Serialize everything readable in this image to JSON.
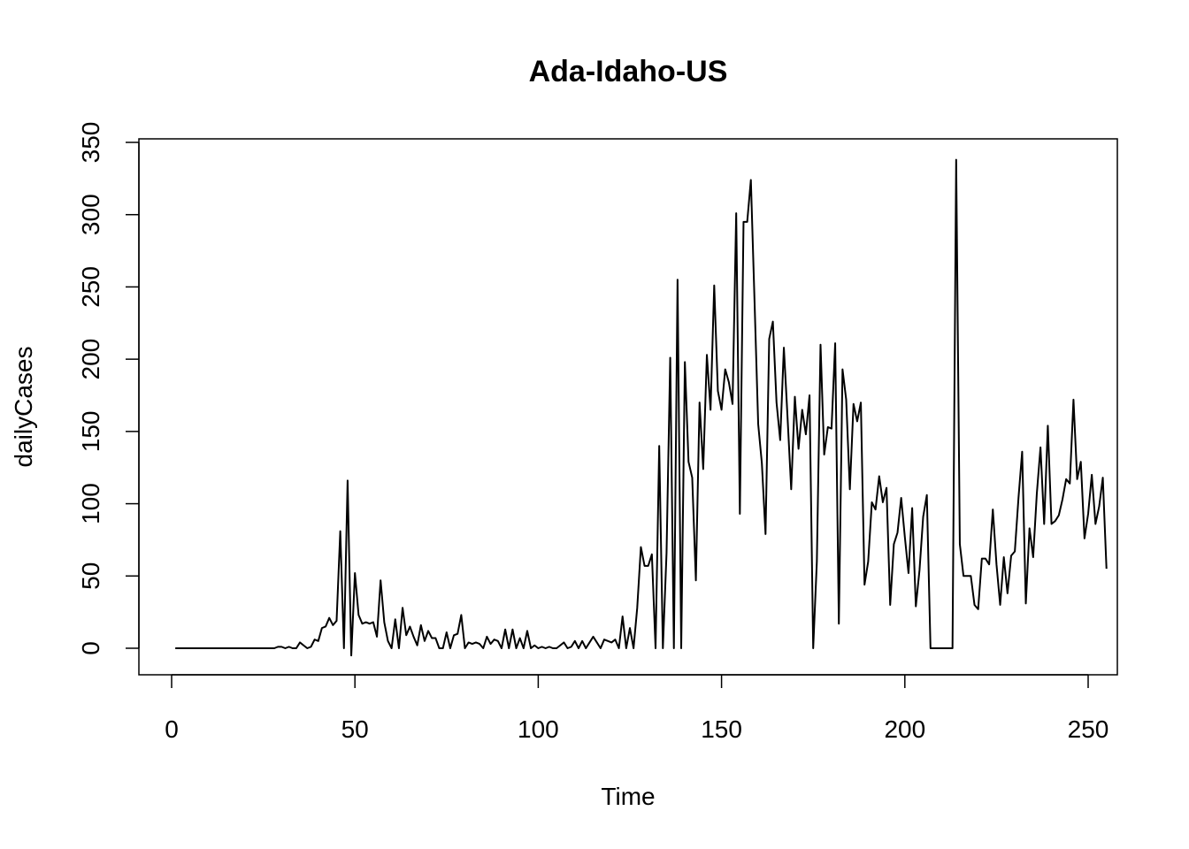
{
  "chart_data": {
    "type": "line",
    "title": "Ada-Idaho-US",
    "xlabel": "Time",
    "ylabel": "dailyCases",
    "xlim": [
      1,
      248
    ],
    "ylim": [
      0,
      350
    ],
    "xticks": [
      0,
      50,
      100,
      150,
      200,
      250
    ],
    "yticks": [
      0,
      50,
      100,
      150,
      200,
      250,
      300,
      350
    ],
    "grid": false,
    "color": "#000000",
    "series": [
      {
        "name": "",
        "x_start": 1,
        "values": [
          0,
          0,
          0,
          0,
          0,
          0,
          0,
          0,
          0,
          0,
          0,
          0,
          0,
          0,
          0,
          0,
          0,
          0,
          0,
          0,
          0,
          0,
          0,
          0,
          0,
          0,
          0,
          0,
          1,
          1,
          0,
          1,
          0,
          0,
          4,
          2,
          0,
          1,
          6,
          5,
          14,
          15,
          21,
          16,
          19,
          81,
          0,
          116,
          -5,
          52,
          23,
          17,
          18,
          17,
          18,
          8,
          47,
          18,
          5,
          0,
          20,
          0,
          28,
          9,
          15,
          8,
          2,
          16,
          5,
          12,
          7,
          7,
          0,
          0,
          11,
          0,
          9,
          10,
          23,
          0,
          4,
          3,
          4,
          3,
          0,
          8,
          3,
          6,
          5,
          0,
          13,
          0,
          13,
          0,
          7,
          0,
          12,
          0,
          2,
          0,
          1,
          0,
          1,
          0,
          0,
          2,
          4,
          0,
          1,
          5,
          0,
          5,
          0,
          4,
          8,
          4,
          0,
          6,
          5,
          4,
          6,
          0,
          22,
          0,
          14,
          0,
          28,
          70,
          57,
          57,
          65,
          0,
          140,
          0,
          66,
          201,
          0,
          255,
          0,
          198,
          129,
          118,
          47,
          170,
          124,
          203,
          165,
          251,
          178,
          165,
          193,
          184,
          169,
          301,
          93,
          295,
          295,
          324,
          240,
          155,
          128,
          79,
          214,
          226,
          170,
          144,
          208,
          160,
          110,
          174,
          138,
          165,
          148,
          175,
          0,
          60,
          210,
          134,
          153,
          152,
          211,
          17,
          193,
          172,
          110,
          169,
          157,
          170,
          44,
          60,
          101,
          96,
          119,
          101,
          111,
          30,
          72,
          80,
          104,
          77,
          52,
          97,
          29,
          54,
          91,
          106,
          0,
          0,
          0,
          0,
          0,
          0,
          0,
          338,
          72,
          50,
          50,
          50,
          30,
          27,
          62,
          62,
          58,
          96,
          58,
          30,
          63,
          38,
          64,
          67,
          104,
          136,
          31,
          83,
          63,
          107,
          139,
          86,
          154,
          86,
          88,
          92,
          103,
          117,
          114,
          172,
          117,
          129,
          76,
          93,
          120,
          86,
          98,
          118,
          55
        ]
      }
    ]
  }
}
